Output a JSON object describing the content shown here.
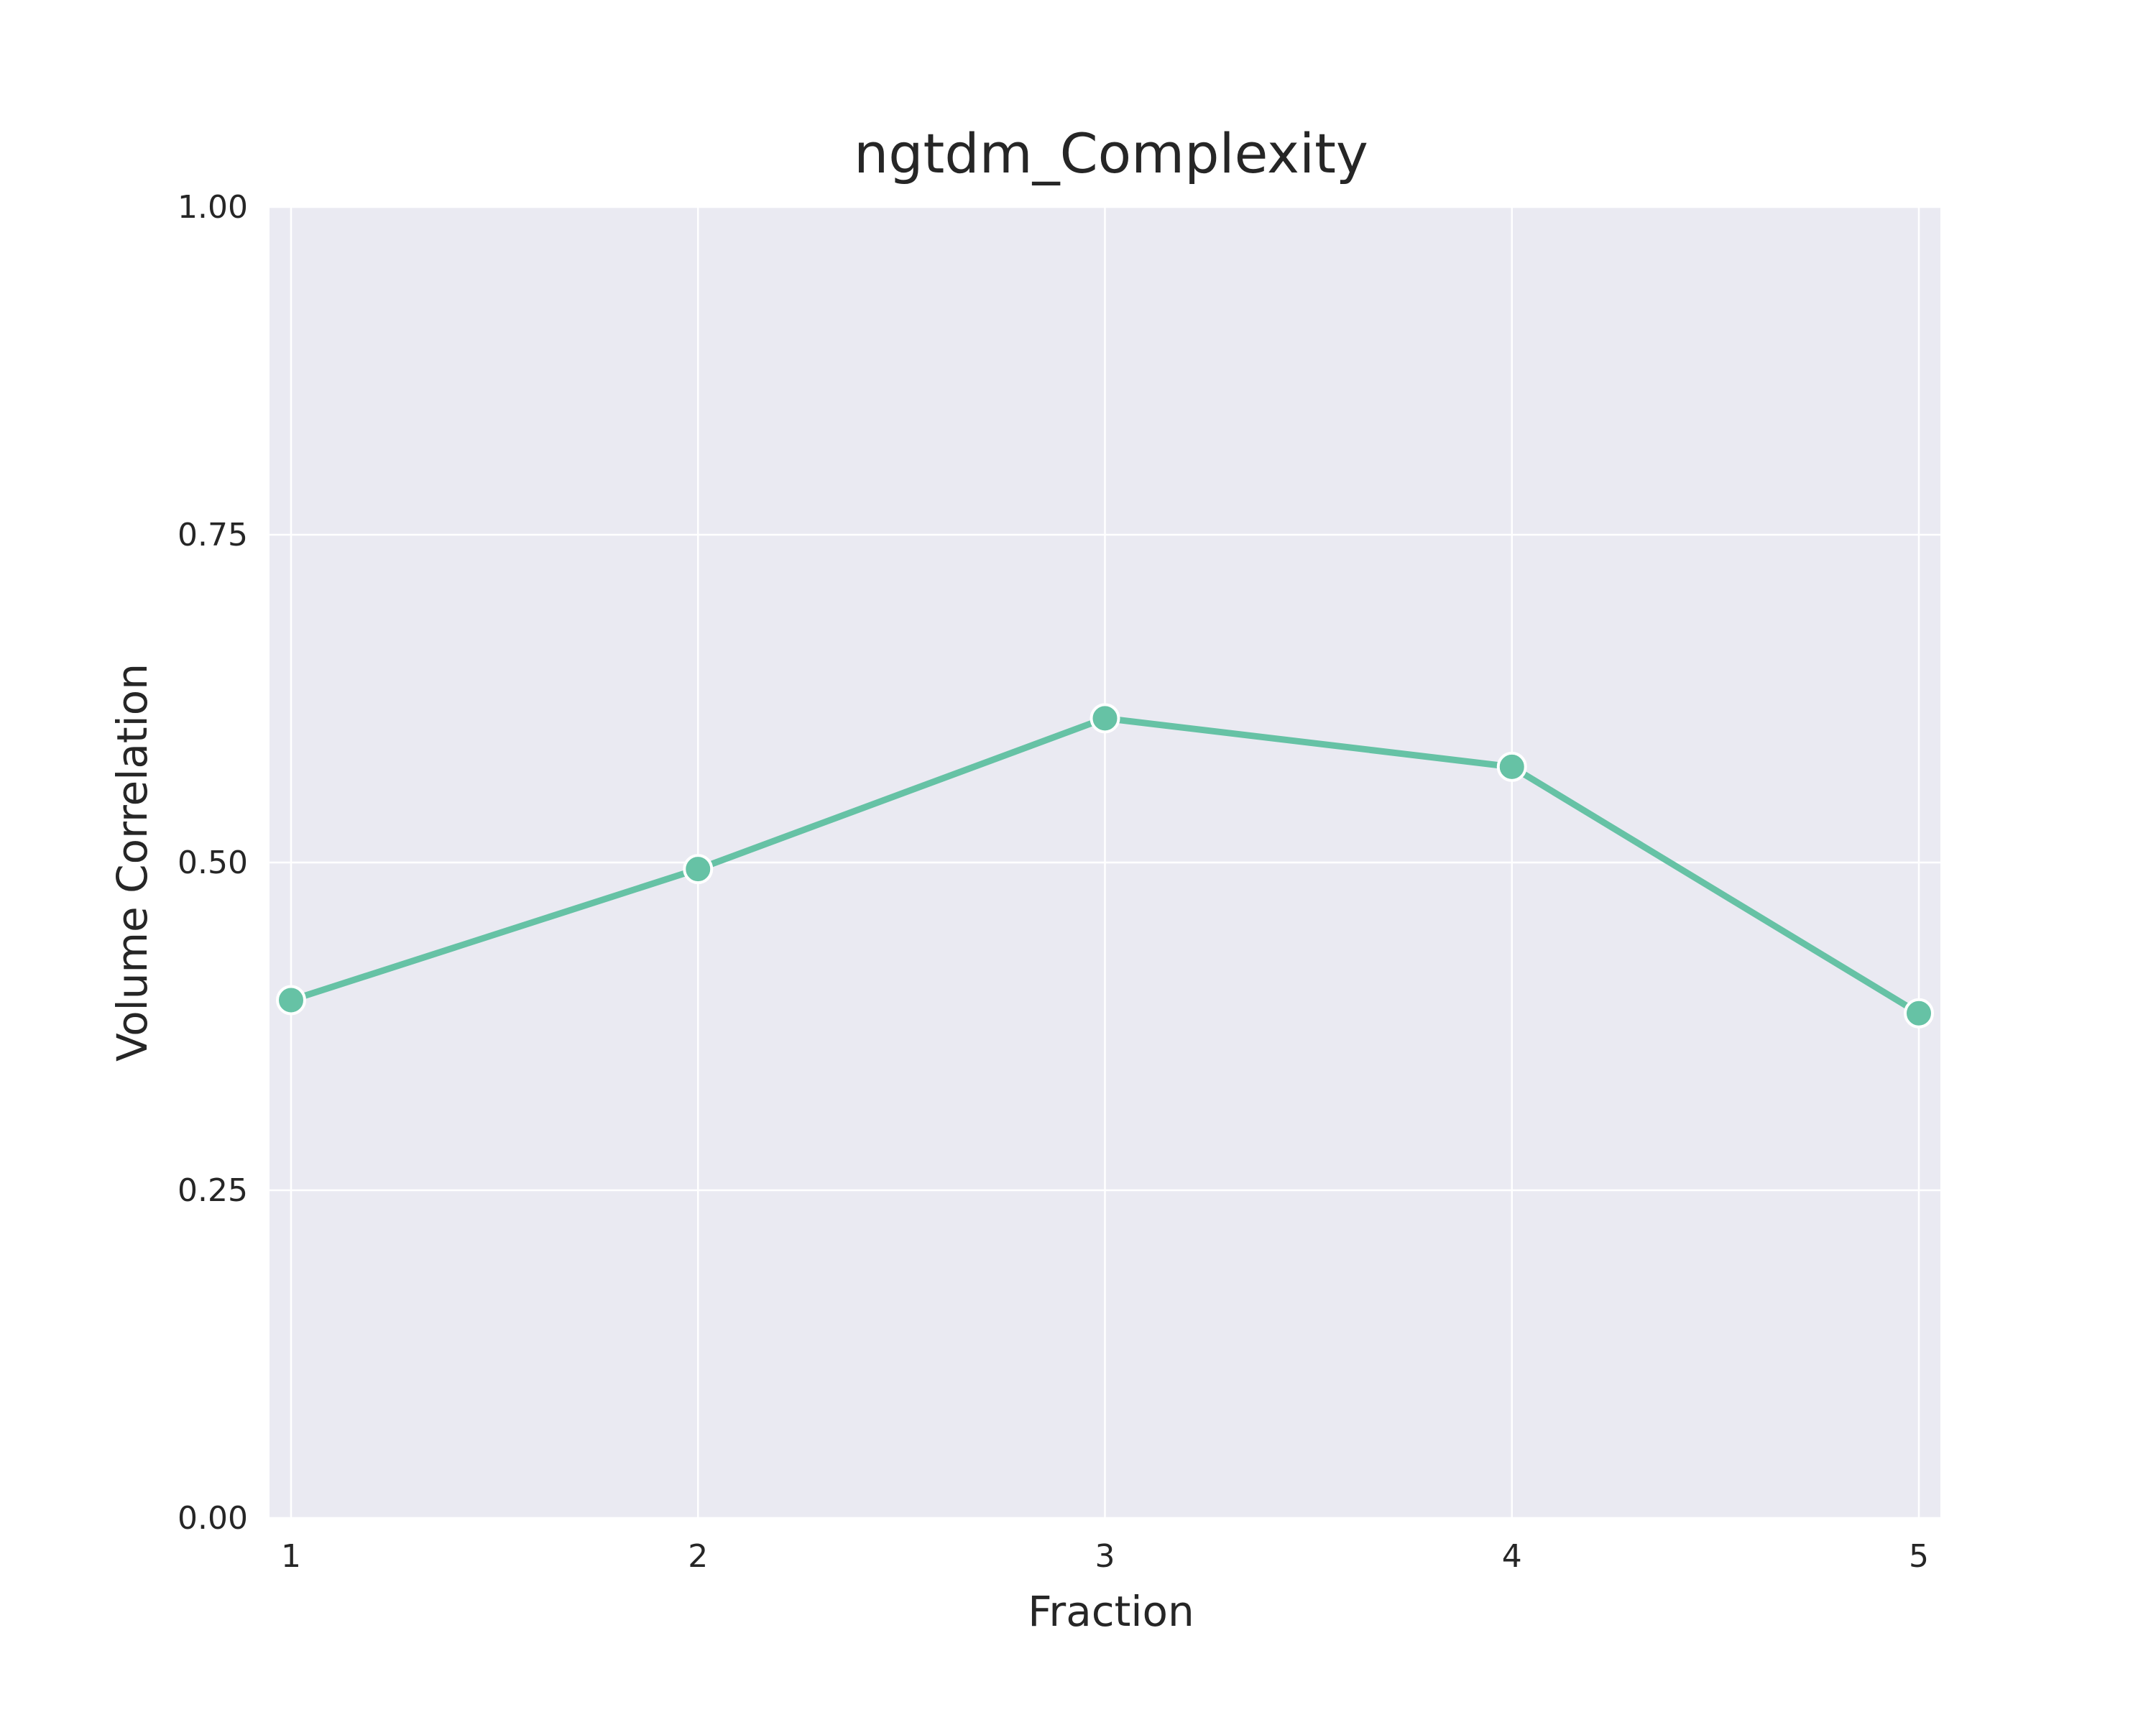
{
  "chart_data": {
    "type": "line",
    "title": "ngtdm_Complexity",
    "xlabel": "Fraction",
    "ylabel": "Volume Correlation",
    "x": [
      1,
      2,
      3,
      4,
      5
    ],
    "series": [
      {
        "values": [
          0.395,
          0.495,
          0.61,
          0.573,
          0.385
        ],
        "color": "#66c2a5"
      }
    ],
    "xticks": [
      "1",
      "2",
      "3",
      "4",
      "5"
    ],
    "yticks": [
      "0.00",
      "0.25",
      "0.50",
      "0.75",
      "1.00"
    ],
    "ylim": [
      0,
      1
    ],
    "grid": true,
    "background": "#eaeaf2",
    "grid_color": "#ffffff"
  }
}
